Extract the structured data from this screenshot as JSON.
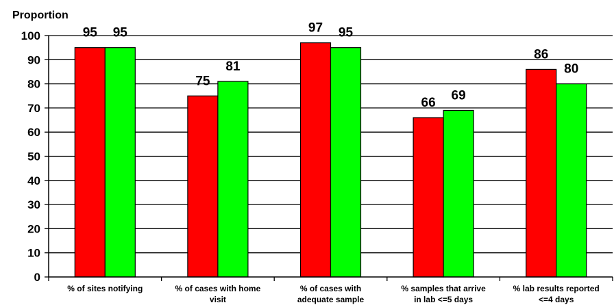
{
  "chart_data": {
    "type": "bar",
    "title": "",
    "ylabel": "Proportion",
    "xlabel": "",
    "ylim": [
      0,
      100
    ],
    "yticks": [
      0,
      10,
      20,
      30,
      40,
      50,
      60,
      70,
      80,
      90,
      100
    ],
    "grid": true,
    "legend": "none",
    "categories": [
      "% of sites notifying",
      "% of cases with home visit",
      "% of cases with adequate sample",
      "% samples that arrive in lab <=5 days",
      "% lab results reported <=4 days"
    ],
    "category_lines": [
      [
        "% of sites notifying"
      ],
      [
        "% of cases with home",
        "visit"
      ],
      [
        "% of cases with",
        "adequate sample"
      ],
      [
        "% samples that arrive",
        "in lab <=5 days"
      ],
      [
        "% lab results reported",
        "<=4 days"
      ]
    ],
    "series": [
      {
        "values": [
          95,
          75,
          97,
          66,
          86
        ],
        "color": "#ff0000"
      },
      {
        "values": [
          95,
          81,
          95,
          69,
          80
        ],
        "color": "#00ff00"
      }
    ]
  }
}
